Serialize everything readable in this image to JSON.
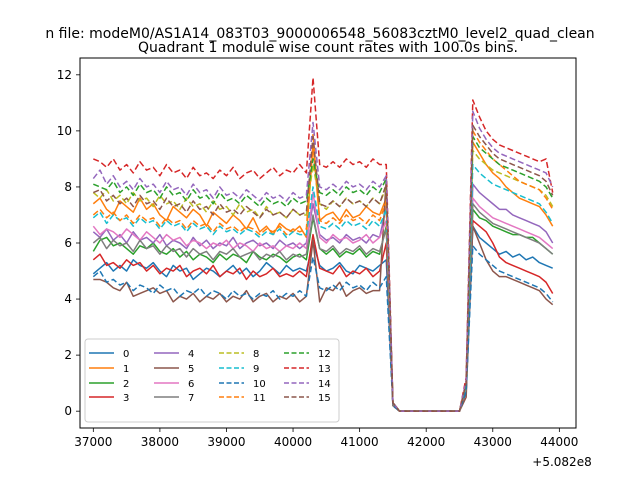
{
  "suptitle": "n file: modeM0/AS1A14_083T03_9000006548_56083cztM0_level2_quad_clean",
  "chart_data": {
    "type": "line",
    "title": "Quadrant 1 module wise count rates with 100.0s bins.",
    "xlabel": "",
    "ylabel": "",
    "x_offset_label": "+5.082e8",
    "xlim": [
      36800,
      44250
    ],
    "ylim": [
      -0.6,
      12.6
    ],
    "xticks": [
      "37000",
      "38000",
      "39000",
      "40000",
      "41000",
      "42000",
      "43000",
      "44000"
    ],
    "yticks": [
      "0",
      "2",
      "4",
      "6",
      "8",
      "10",
      "12"
    ],
    "grid": false,
    "legend": {
      "placement": "lower-left",
      "columns": 4
    },
    "x_start": 37000,
    "x_step": 100,
    "series": [
      {
        "name": "0",
        "color": "#1f77b4",
        "dash": "solid",
        "values": [
          4.9,
          5.1,
          5.3,
          5.0,
          5.2,
          5.0,
          5.4,
          5.2,
          5.1,
          5.3,
          5.0,
          4.8,
          5.2,
          5.0,
          5.1,
          4.7,
          4.9,
          5.1,
          5.0,
          4.8,
          5.0,
          5.2,
          4.9,
          5.1,
          4.8,
          5.0,
          5.3,
          5.1,
          4.9,
          5.2,
          5.0,
          5.1,
          5.0,
          6.0,
          5.2,
          5.0,
          5.1,
          5.3,
          5.0,
          4.9,
          5.2,
          5.1,
          5.0,
          5.2,
          5.4,
          0.3,
          0.0,
          0.0,
          0.0,
          0.0,
          0.0,
          0.0,
          0.0,
          0.0,
          0.0,
          0.0,
          0.7,
          6.6,
          6.2,
          6.0,
          5.8,
          5.6,
          5.7,
          5.5,
          5.6,
          5.4,
          5.5,
          5.3,
          5.2,
          5.1
        ]
      },
      {
        "name": "1",
        "color": "#ff7f0e",
        "dash": "solid",
        "values": [
          7.4,
          7.6,
          7.2,
          7.0,
          7.5,
          7.3,
          7.1,
          7.6,
          7.2,
          7.4,
          7.0,
          6.8,
          7.3,
          7.1,
          6.9,
          7.2,
          7.0,
          6.6,
          7.1,
          6.9,
          6.7,
          7.0,
          6.8,
          6.5,
          6.9,
          6.4,
          6.6,
          6.3,
          6.7,
          6.5,
          6.4,
          6.6,
          6.2,
          9.5,
          6.8,
          7.0,
          7.1,
          6.8,
          7.2,
          6.9,
          7.0,
          7.3,
          7.1,
          7.0,
          7.6,
          0.2,
          0.0,
          0.0,
          0.0,
          0.0,
          0.0,
          0.0,
          0.0,
          0.0,
          0.0,
          0.0,
          0.9,
          9.6,
          9.2,
          8.8,
          8.5,
          8.3,
          8.0,
          7.8,
          7.6,
          7.5,
          7.4,
          7.3,
          7.0,
          6.6
        ]
      },
      {
        "name": "2",
        "color": "#2ca02c",
        "dash": "solid",
        "values": [
          5.7,
          6.1,
          6.2,
          5.9,
          6.0,
          5.8,
          5.6,
          5.9,
          5.8,
          6.0,
          5.7,
          5.6,
          5.8,
          5.5,
          5.7,
          5.4,
          5.6,
          5.5,
          5.3,
          5.6,
          5.4,
          5.6,
          5.5,
          5.3,
          5.7,
          5.5,
          5.4,
          5.6,
          5.5,
          5.3,
          5.5,
          5.6,
          5.4,
          6.9,
          5.8,
          5.6,
          5.8,
          5.5,
          5.7,
          5.6,
          5.8,
          5.5,
          5.7,
          5.6,
          6.6,
          0.2,
          0.0,
          0.0,
          0.0,
          0.0,
          0.0,
          0.0,
          0.0,
          0.0,
          0.0,
          0.0,
          0.8,
          7.2,
          6.9,
          6.8,
          6.6,
          6.5,
          6.4,
          6.3,
          6.3,
          6.2,
          6.2,
          6.0,
          5.8,
          5.6
        ]
      },
      {
        "name": "3",
        "color": "#d62728",
        "dash": "solid",
        "values": [
          5.4,
          5.6,
          5.2,
          5.3,
          5.1,
          5.4,
          5.2,
          5.3,
          5.0,
          5.2,
          4.9,
          5.1,
          5.0,
          5.2,
          4.8,
          5.0,
          5.1,
          4.9,
          5.2,
          4.8,
          5.0,
          4.9,
          5.1,
          4.7,
          5.0,
          4.8,
          4.9,
          5.1,
          4.8,
          4.9,
          4.8,
          5.0,
          4.8,
          6.3,
          5.1,
          5.0,
          4.9,
          5.2,
          4.8,
          5.0,
          4.9,
          5.1,
          4.8,
          5.0,
          6.0,
          0.2,
          0.0,
          0.0,
          0.0,
          0.0,
          0.0,
          0.0,
          0.0,
          0.0,
          0.0,
          0.0,
          0.7,
          6.8,
          6.6,
          6.4,
          6.0,
          5.5,
          5.3,
          5.2,
          5.1,
          5.0,
          4.9,
          4.8,
          4.6,
          4.2
        ]
      },
      {
        "name": "4",
        "color": "#9467bd",
        "dash": "solid",
        "values": [
          6.4,
          6.2,
          6.5,
          6.1,
          6.3,
          6.0,
          6.4,
          6.1,
          6.2,
          6.0,
          6.3,
          5.9,
          6.1,
          6.0,
          5.8,
          6.2,
          5.9,
          6.1,
          5.8,
          6.0,
          5.9,
          6.2,
          5.8,
          6.0,
          6.1,
          5.9,
          6.0,
          5.8,
          6.1,
          5.9,
          6.0,
          5.8,
          6.0,
          7.4,
          6.3,
          6.1,
          6.2,
          6.0,
          6.3,
          6.1,
          6.2,
          6.0,
          6.3,
          6.2,
          7.3,
          0.3,
          0.0,
          0.0,
          0.0,
          0.0,
          0.0,
          0.0,
          0.0,
          0.0,
          0.0,
          0.0,
          0.8,
          8.1,
          7.8,
          7.6,
          7.4,
          7.2,
          7.2,
          7.0,
          6.9,
          6.8,
          6.7,
          6.6,
          6.4,
          6.0
        ]
      },
      {
        "name": "5",
        "color": "#8c564b",
        "dash": "solid",
        "values": [
          4.7,
          4.7,
          4.6,
          4.4,
          4.3,
          4.6,
          4.1,
          4.2,
          4.3,
          4.4,
          4.2,
          4.3,
          3.9,
          4.1,
          4.0,
          4.2,
          3.9,
          4.1,
          4.0,
          4.2,
          3.9,
          4.1,
          4.0,
          4.3,
          3.9,
          4.1,
          4.2,
          3.9,
          4.1,
          4.0,
          4.2,
          3.9,
          4.1,
          6.1,
          3.9,
          4.4,
          4.3,
          4.6,
          4.1,
          4.3,
          4.4,
          4.2,
          4.3,
          4.3,
          8.3,
          0.2,
          0.0,
          0.0,
          0.0,
          0.0,
          0.0,
          0.0,
          0.0,
          0.0,
          0.0,
          0.0,
          0.5,
          6.6,
          6.0,
          5.4,
          5.0,
          4.8,
          4.8,
          4.7,
          4.6,
          4.5,
          4.4,
          4.3,
          4.0,
          3.8
        ]
      },
      {
        "name": "6",
        "color": "#e377c2",
        "dash": "solid",
        "values": [
          6.6,
          6.3,
          6.5,
          6.4,
          6.2,
          6.5,
          6.3,
          6.1,
          6.4,
          6.2,
          6.0,
          6.3,
          6.1,
          6.2,
          5.9,
          6.1,
          6.0,
          5.8,
          6.0,
          5.9,
          6.1,
          5.8,
          6.0,
          5.9,
          5.7,
          6.0,
          5.8,
          5.9,
          5.7,
          5.9,
          5.8,
          6.0,
          5.8,
          7.8,
          6.2,
          6.0,
          6.3,
          6.1,
          6.2,
          6.0,
          6.1,
          6.3,
          6.0,
          6.2,
          6.8,
          0.3,
          0.0,
          0.0,
          0.0,
          0.0,
          0.0,
          0.0,
          0.0,
          0.0,
          0.0,
          0.0,
          0.9,
          7.6,
          7.3,
          7.1,
          6.9,
          6.8,
          6.7,
          6.6,
          6.5,
          6.4,
          6.3,
          6.2,
          6.0,
          5.8
        ]
      },
      {
        "name": "7",
        "color": "#7f7f7f",
        "dash": "solid",
        "values": [
          6.0,
          6.2,
          5.8,
          6.1,
          5.9,
          6.0,
          5.7,
          6.1,
          5.8,
          5.9,
          5.6,
          5.9,
          5.7,
          5.8,
          5.5,
          5.8,
          5.6,
          5.7,
          5.4,
          5.7,
          5.6,
          5.8,
          5.5,
          5.6,
          5.7,
          5.4,
          5.6,
          5.5,
          5.7,
          5.4,
          5.6,
          5.5,
          5.6,
          7.0,
          5.8,
          5.7,
          5.9,
          5.6,
          5.8,
          5.7,
          5.9,
          5.6,
          5.8,
          5.7,
          6.5,
          0.2,
          0.0,
          0.0,
          0.0,
          0.0,
          0.0,
          0.0,
          0.0,
          0.0,
          0.0,
          0.0,
          0.8,
          7.4,
          7.1,
          6.9,
          6.7,
          6.6,
          6.5,
          6.4,
          6.3,
          6.2,
          6.1,
          6.0,
          5.8,
          5.6
        ]
      },
      {
        "name": "8",
        "color": "#bcbd22",
        "dash": "dashed",
        "values": [
          7.8,
          7.6,
          7.9,
          7.5,
          7.7,
          7.4,
          7.8,
          7.5,
          7.6,
          7.3,
          7.7,
          7.4,
          7.5,
          7.2,
          7.6,
          7.3,
          7.4,
          7.1,
          7.5,
          7.2,
          7.3,
          7.0,
          7.4,
          7.1,
          7.2,
          6.9,
          7.3,
          7.0,
          7.1,
          6.9,
          7.2,
          7.0,
          7.0,
          8.8,
          7.4,
          7.2,
          7.5,
          7.3,
          7.6,
          7.4,
          7.5,
          7.3,
          7.6,
          7.4,
          8.0,
          0.3,
          0.0,
          0.0,
          0.0,
          0.0,
          0.0,
          0.0,
          0.0,
          0.0,
          0.0,
          0.0,
          1.0,
          9.3,
          9.0,
          8.8,
          8.6,
          8.5,
          8.4,
          8.3,
          8.2,
          8.1,
          8.0,
          7.9,
          7.7,
          7.3
        ]
      },
      {
        "name": "9",
        "color": "#17becf",
        "dash": "dashed",
        "values": [
          6.9,
          7.1,
          6.7,
          7.0,
          6.8,
          6.9,
          6.6,
          6.9,
          6.7,
          6.8,
          6.5,
          6.8,
          6.6,
          6.7,
          6.4,
          6.7,
          6.5,
          6.6,
          6.3,
          6.6,
          6.4,
          6.5,
          6.3,
          6.5,
          6.4,
          6.2,
          6.4,
          6.3,
          6.5,
          6.2,
          6.4,
          6.3,
          6.3,
          8.0,
          6.6,
          6.5,
          6.7,
          6.5,
          6.8,
          6.6,
          6.7,
          6.5,
          6.8,
          6.6,
          7.2,
          0.3,
          0.0,
          0.0,
          0.0,
          0.0,
          0.0,
          0.0,
          0.0,
          0.0,
          0.0,
          0.0,
          0.9,
          8.8,
          8.5,
          8.3,
          8.1,
          8.0,
          7.9,
          7.8,
          7.7,
          7.6,
          7.5,
          7.4,
          7.1,
          6.7
        ]
      },
      {
        "name": "10",
        "color": "#1f77b4",
        "dash": "dashed",
        "values": [
          4.8,
          5.0,
          4.6,
          4.7,
          4.5,
          4.6,
          4.3,
          4.5,
          4.4,
          4.2,
          4.5,
          4.3,
          4.4,
          4.1,
          4.3,
          4.2,
          4.4,
          4.1,
          4.3,
          4.2,
          4.0,
          4.3,
          4.1,
          4.2,
          4.0,
          4.2,
          4.1,
          4.3,
          4.0,
          4.2,
          4.1,
          4.3,
          4.1,
          5.5,
          4.4,
          4.3,
          4.5,
          4.3,
          4.6,
          4.4,
          4.5,
          4.3,
          4.6,
          4.4,
          4.8,
          0.2,
          0.0,
          0.0,
          0.0,
          0.0,
          0.0,
          0.0,
          0.0,
          0.0,
          0.0,
          0.0,
          0.7,
          5.9,
          5.6,
          5.4,
          5.2,
          5.0,
          4.9,
          4.8,
          4.7,
          4.6,
          4.5,
          4.4,
          4.2,
          3.9
        ]
      },
      {
        "name": "11",
        "color": "#ff7f0e",
        "dash": "dashed",
        "values": [
          7.0,
          7.2,
          6.9,
          7.1,
          6.8,
          7.0,
          6.7,
          7.0,
          6.8,
          6.9,
          6.6,
          6.9,
          6.7,
          6.8,
          6.5,
          6.8,
          6.6,
          6.7,
          6.4,
          6.7,
          6.5,
          6.6,
          6.4,
          6.6,
          6.5,
          6.3,
          6.5,
          6.4,
          6.6,
          6.3,
          6.5,
          6.4,
          6.5,
          9.9,
          6.8,
          6.7,
          6.9,
          6.7,
          7.0,
          6.8,
          6.9,
          6.7,
          7.0,
          6.8,
          7.5,
          0.3,
          0.0,
          0.0,
          0.0,
          0.0,
          0.0,
          0.0,
          0.0,
          0.0,
          0.0,
          0.0,
          1.0,
          10.0,
          9.6,
          9.3,
          9.0,
          8.8,
          8.6,
          8.4,
          8.2,
          8.1,
          8.0,
          7.9,
          7.6,
          7.2
        ]
      },
      {
        "name": "12",
        "color": "#2ca02c",
        "dash": "dashed",
        "values": [
          8.1,
          8.0,
          7.9,
          8.2,
          7.8,
          8.0,
          7.7,
          8.1,
          7.8,
          7.9,
          7.6,
          8.0,
          7.7,
          7.8,
          7.5,
          7.9,
          7.6,
          7.7,
          7.4,
          7.8,
          7.5,
          7.6,
          7.4,
          7.7,
          7.5,
          7.3,
          7.6,
          7.4,
          7.5,
          7.3,
          7.6,
          7.4,
          7.5,
          9.0,
          7.8,
          7.7,
          7.9,
          7.7,
          8.0,
          7.8,
          7.9,
          7.7,
          8.0,
          7.8,
          8.3,
          0.3,
          0.0,
          0.0,
          0.0,
          0.0,
          0.0,
          0.0,
          0.0,
          0.0,
          0.0,
          0.0,
          1.0,
          9.8,
          9.4,
          9.2,
          9.0,
          8.8,
          8.7,
          8.6,
          8.5,
          8.4,
          8.3,
          8.2,
          8.0,
          7.6
        ]
      },
      {
        "name": "13",
        "color": "#d62728",
        "dash": "dashed",
        "values": [
          9.0,
          8.9,
          8.7,
          9.0,
          8.6,
          8.8,
          8.5,
          8.9,
          8.6,
          8.7,
          8.4,
          8.8,
          8.5,
          8.6,
          8.3,
          8.7,
          8.4,
          8.5,
          8.3,
          8.6,
          8.4,
          8.7,
          8.3,
          8.5,
          8.6,
          8.3,
          8.5,
          8.7,
          8.4,
          8.6,
          8.5,
          8.8,
          8.5,
          11.9,
          8.8,
          8.7,
          8.9,
          8.7,
          9.0,
          8.8,
          8.9,
          8.7,
          9.0,
          8.8,
          8.8,
          0.3,
          0.0,
          0.0,
          0.0,
          0.0,
          0.0,
          0.0,
          0.0,
          0.0,
          0.0,
          0.0,
          1.2,
          11.1,
          10.5,
          10.0,
          9.7,
          9.5,
          9.4,
          9.3,
          9.2,
          9.1,
          9.0,
          8.9,
          9.0,
          7.8
        ]
      },
      {
        "name": "14",
        "color": "#9467bd",
        "dash": "dashed",
        "values": [
          8.3,
          8.6,
          8.1,
          8.4,
          8.0,
          8.2,
          7.9,
          8.3,
          8.0,
          8.1,
          7.8,
          8.2,
          7.9,
          8.0,
          7.7,
          8.1,
          7.8,
          7.9,
          7.6,
          8.0,
          7.7,
          7.8,
          7.6,
          7.9,
          7.7,
          7.5,
          7.8,
          7.6,
          7.7,
          7.5,
          7.8,
          7.6,
          7.7,
          10.3,
          8.0,
          7.9,
          8.1,
          7.9,
          8.2,
          8.0,
          8.1,
          7.9,
          8.2,
          8.0,
          8.4,
          0.3,
          0.0,
          0.0,
          0.0,
          0.0,
          0.0,
          0.0,
          0.0,
          0.0,
          0.0,
          0.0,
          1.1,
          10.7,
          10.1,
          9.7,
          9.4,
          9.2,
          9.1,
          9.0,
          8.9,
          8.8,
          8.7,
          8.6,
          8.5,
          8.0
        ]
      },
      {
        "name": "15",
        "color": "#8c564b",
        "dash": "dashed",
        "values": [
          7.8,
          7.9,
          7.5,
          7.7,
          7.4,
          7.6,
          7.3,
          7.7,
          7.4,
          7.5,
          7.2,
          7.6,
          7.3,
          7.4,
          7.1,
          7.5,
          7.2,
          7.3,
          7.0,
          7.4,
          7.1,
          7.2,
          7.0,
          7.3,
          7.1,
          6.9,
          7.2,
          7.0,
          7.1,
          6.9,
          7.2,
          7.0,
          7.1,
          9.8,
          7.4,
          7.3,
          7.5,
          7.3,
          7.6,
          7.4,
          7.5,
          7.3,
          7.6,
          7.4,
          8.1,
          0.3,
          0.0,
          0.0,
          0.0,
          0.0,
          0.0,
          0.0,
          0.0,
          0.0,
          0.0,
          0.0,
          1.0,
          10.2,
          9.8,
          9.5,
          9.2,
          9.0,
          8.9,
          8.8,
          8.7,
          8.6,
          8.5,
          8.4,
          8.2,
          7.7
        ]
      }
    ]
  }
}
